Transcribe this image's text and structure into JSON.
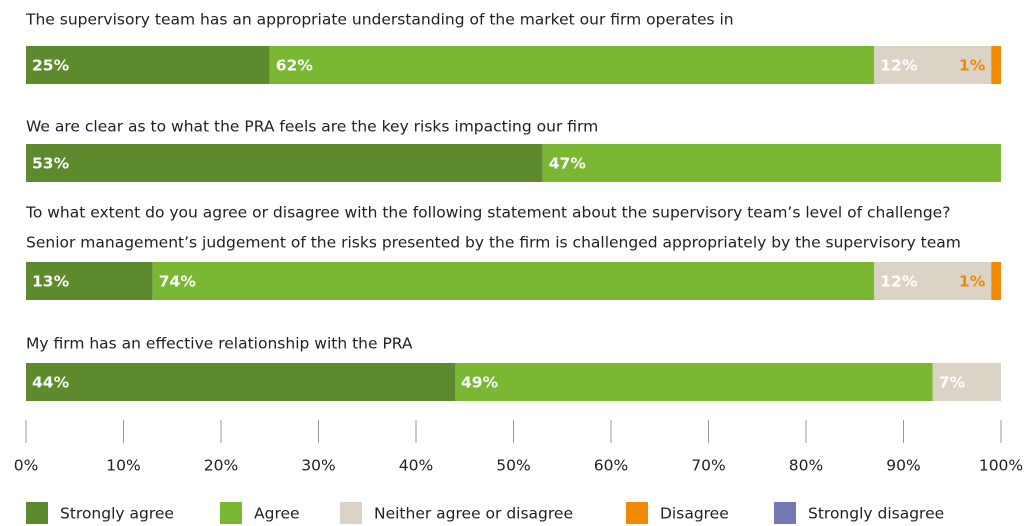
{
  "chart_data": {
    "type": "bar",
    "orientation": "horizontal",
    "stacked": true,
    "categories": [
      [
        "The supervisory team has an appropriate understanding of the market our firm operates in"
      ],
      [
        "We are clear as to what the PRA feels are the key risks impacting our firm"
      ],
      [
        "To what extent do you agree or disagree with the following statement about the supervisory team’s level of challenge?",
        "Senior management’s judgement of the risks presented by the firm is challenged appropriately by the supervisory team"
      ],
      [
        "My firm has an effective relationship with the PRA"
      ]
    ],
    "series": [
      {
        "name": "Strongly agree",
        "color": "#5e8a2e",
        "label_color": "#ffffff",
        "values": [
          25,
          53,
          13,
          44
        ],
        "value_labels": [
          "25%",
          "53%",
          "13%",
          "44%"
        ]
      },
      {
        "name": "Agree",
        "color": "#7ab833",
        "label_color": "#ffffff",
        "values": [
          62,
          47,
          74,
          49
        ],
        "value_labels": [
          "62%",
          "47%",
          "74%",
          "49%"
        ]
      },
      {
        "name": "Neither agree or disagree",
        "color": "#dcd3c7",
        "label_color": "#ffffff",
        "values": [
          12,
          null,
          12,
          7
        ],
        "value_labels": [
          "12%",
          null,
          "12%",
          "7%"
        ]
      },
      {
        "name": "Disagree",
        "color": "#f08a00",
        "label_color": "#f08a00",
        "values": [
          1,
          null,
          1,
          null
        ],
        "value_labels": [
          "1%",
          null,
          "1%",
          null
        ]
      },
      {
        "name": "Strongly disagree",
        "color": "#7478b4",
        "label_color": "#ffffff",
        "values": [
          null,
          null,
          null,
          null
        ],
        "value_labels": [
          null,
          null,
          null,
          null
        ]
      }
    ],
    "xlim": [
      0,
      100
    ],
    "xticks": [
      {
        "value": 0,
        "label": "0%"
      },
      {
        "value": 10,
        "label": "10%"
      },
      {
        "value": 20,
        "label": "20%"
      },
      {
        "value": 30,
        "label": "30%"
      },
      {
        "value": 40,
        "label": "40%"
      },
      {
        "value": 50,
        "label": "50%"
      },
      {
        "value": 60,
        "label": "60%"
      },
      {
        "value": 70,
        "label": "70%"
      },
      {
        "value": 80,
        "label": "80%"
      },
      {
        "value": 90,
        "label": "90%"
      },
      {
        "value": 100,
        "label": "100%"
      }
    ],
    "legend": "bottom"
  }
}
